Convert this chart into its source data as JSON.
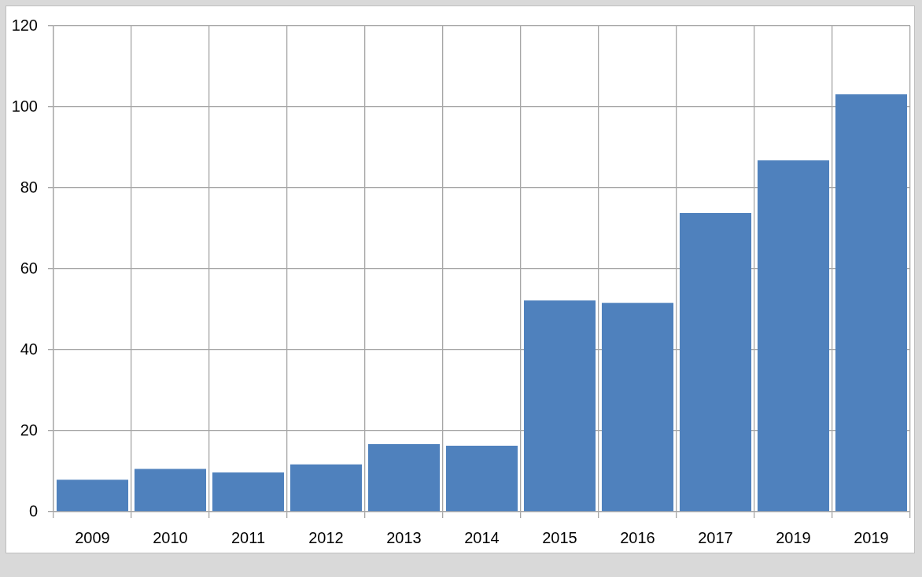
{
  "chart_data": {
    "type": "bar",
    "categories": [
      "2009",
      "2010",
      "2011",
      "2012",
      "2013",
      "2014",
      "2015",
      "2016",
      "2017",
      "2019",
      "2019"
    ],
    "values": [
      7.9,
      10.6,
      9.7,
      11.7,
      16.7,
      16.3,
      52.2,
      51.6,
      73.8,
      86.8,
      103.1
    ],
    "color": "#4f81bd",
    "ylim": [
      0,
      120
    ],
    "yticks": [
      0,
      20,
      40,
      60,
      80,
      100,
      120
    ],
    "grid": true
  }
}
